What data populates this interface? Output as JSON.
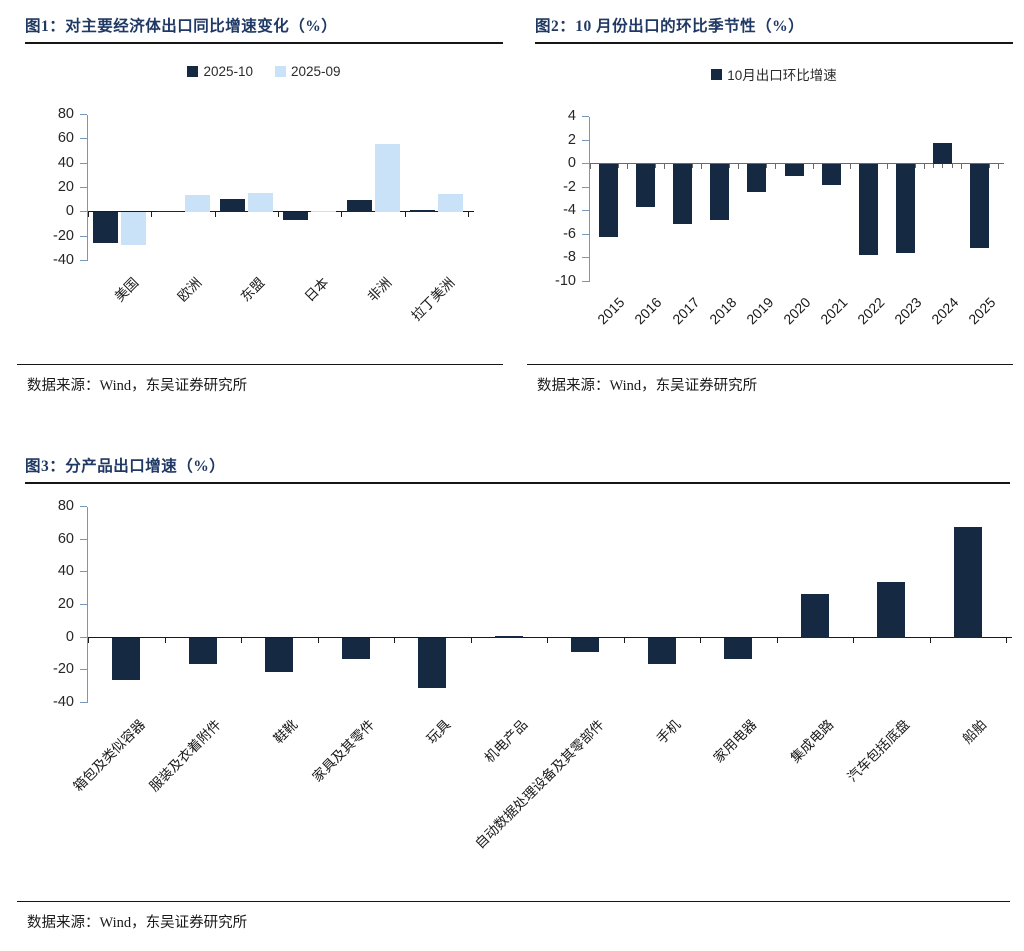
{
  "figures": {
    "fig1": {
      "title": "图1：对主要经济体出口同比增速变化（%）",
      "source": "数据来源：Wind，东吴证券研究所"
    },
    "fig2": {
      "title": "图2：10 月份出口的环比季节性（%）",
      "source": "数据来源：Wind，东吴证券研究所"
    },
    "fig3": {
      "title": "图3：分产品出口增速（%）",
      "source": "数据来源：Wind，东吴证券研究所"
    }
  },
  "colors": {
    "title_navy": "#1f3864",
    "bar_dark_navy": "#152a42",
    "bar_light_blue": "#c9e2f8",
    "axis_steel_blue": "#7a96b8",
    "zero_line_dark": "#1a1a1a",
    "zero_line_gray": "#6a6a6a"
  },
  "chart_data": [
    {
      "type": "bar",
      "title": "对主要经济体出口同比增速变化（%）",
      "categories": [
        "美国",
        "欧洲",
        "东盟",
        "日本",
        "非洲",
        "拉丁美洲"
      ],
      "series": [
        {
          "name": "2025-10",
          "color": "#152a42",
          "values": [
            -25,
            1,
            11,
            -6,
            10,
            2
          ]
        },
        {
          "name": "2025-09",
          "color": "#c9e2f8",
          "values": [
            -27,
            14,
            15.5,
            1.5,
            56,
            15
          ]
        }
      ],
      "ylim": [
        -40,
        80
      ],
      "ytick_step": 20,
      "legend_position": "top",
      "grid": false,
      "xlabel": "",
      "ylabel": ""
    },
    {
      "type": "bar",
      "title": "10 月份出口的环比季节性（%）",
      "categories": [
        "2015",
        "2016",
        "2017",
        "2018",
        "2019",
        "2020",
        "2021",
        "2022",
        "2023",
        "2024",
        "2025"
      ],
      "series": [
        {
          "name": "10月出口环比增速",
          "color": "#152a42",
          "values": [
            -6.2,
            -3.6,
            -5.1,
            -4.7,
            -2.4,
            -1.0,
            -1.8,
            -7.7,
            -7.5,
            1.8,
            -7.1
          ]
        }
      ],
      "ylim": [
        -10,
        4
      ],
      "ytick_step": 2,
      "legend_position": "top",
      "grid": false,
      "xlabel": "",
      "ylabel": ""
    },
    {
      "type": "bar",
      "title": "分产品出口增速（%）",
      "categories": [
        "箱包及类似容器",
        "服装及衣着附件",
        "鞋靴",
        "家具及其零件",
        "玩具",
        "机电产品",
        "自动数据处理设备及其零部件",
        "手机",
        "家用电器",
        "集成电路",
        "汽车包括底盘",
        "船舶"
      ],
      "series": [
        {
          "name": "",
          "color": "#152a42",
          "values": [
            -26,
            -16,
            -21,
            -13,
            -31,
            1,
            -9,
            -16,
            -13,
            27,
            34,
            68
          ]
        }
      ],
      "ylim": [
        -40,
        80
      ],
      "ytick_step": 20,
      "legend_position": "none",
      "grid": false,
      "xlabel": "",
      "ylabel": ""
    }
  ]
}
